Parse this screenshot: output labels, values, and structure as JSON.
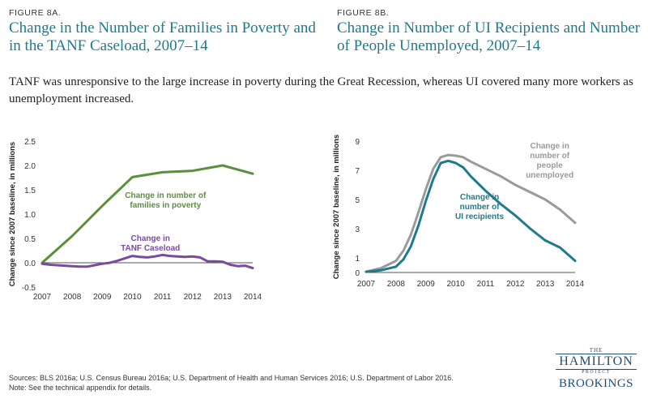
{
  "figures": {
    "a": {
      "label": "FIGURE 8A.",
      "title": "Change in the Number of Families in Poverty and in the TANF Caseload, 2007–14"
    },
    "b": {
      "label": "FIGURE 8B.",
      "title": "Change in Number of UI Recipients and Number of People Unemployed, 2007–14"
    }
  },
  "subtitle": "TANF was unresponsive to the large increase in poverty during the Great Recession, whereas UI covered many more workers as unemployment increased.",
  "footer": {
    "sources": "Sources: BLS 2016a; U.S. Census Bureau 2016a; U.S. Department of Health and Human Services 2016; U.S. Department of Labor 2016.",
    "note": "Note: See the technical appendix for details."
  },
  "logo": {
    "the": "THE",
    "hamilton": "HAMILTON",
    "project": "PROJECT",
    "brookings": "BROOKINGS"
  },
  "colors": {
    "title": "#1f7a8c",
    "poverty": "#5a8f3c",
    "tanf": "#7b4a9e",
    "ui": "#1e7b8c",
    "unemployed": "#9a9a9a"
  },
  "chart_data": [
    {
      "type": "line",
      "title": "",
      "xlabel": "",
      "ylabel": "Change since 2007 baseline, in millions",
      "xlim": [
        2007,
        2014
      ],
      "ylim": [
        -0.5,
        2.5
      ],
      "xticks": [
        "2007",
        "2008",
        "2009",
        "2010",
        "2011",
        "2012",
        "2013",
        "2014"
      ],
      "yticks": [
        "-0.5",
        "0.0",
        "0.5",
        "1.0",
        "1.5",
        "2.0",
        "2.5"
      ],
      "zero_line": true,
      "series": [
        {
          "name": "Change in number of families in poverty",
          "color": "#5a8f3c",
          "x": [
            2007,
            2008,
            2009,
            2010,
            2011,
            2012,
            2013,
            2014
          ],
          "y": [
            0.0,
            0.55,
            1.17,
            1.76,
            1.86,
            1.89,
            2.0,
            1.83
          ]
        },
        {
          "name": "Change in TANF Caseload",
          "color": "#7b4a9e",
          "x": [
            2007,
            2007.25,
            2007.5,
            2007.75,
            2008,
            2008.25,
            2008.5,
            2008.75,
            2009,
            2009.25,
            2009.5,
            2009.75,
            2010,
            2010.25,
            2010.5,
            2010.75,
            2011,
            2011.25,
            2011.5,
            2011.75,
            2012,
            2012.25,
            2012.5,
            2012.75,
            2013,
            2013.25,
            2013.5,
            2013.75,
            2014
          ],
          "y": [
            -0.02,
            -0.04,
            -0.05,
            -0.06,
            -0.07,
            -0.08,
            -0.08,
            -0.05,
            -0.02,
            0.0,
            0.04,
            0.09,
            0.14,
            0.12,
            0.11,
            0.13,
            0.16,
            0.14,
            0.13,
            0.12,
            0.13,
            0.11,
            0.03,
            0.03,
            0.02,
            -0.04,
            -0.07,
            -0.06,
            -0.11
          ]
        }
      ],
      "annotations": [
        {
          "text": [
            "Change in number of",
            "families in poverty"
          ],
          "x": 2011.1,
          "y": 1.33,
          "color": "#5a8f3c"
        },
        {
          "text": [
            "Change in",
            "TANF Caseload"
          ],
          "x": 2010.6,
          "y": 0.45,
          "color": "#7b4a9e"
        }
      ]
    },
    {
      "type": "line",
      "title": "",
      "xlabel": "",
      "ylabel": "Change since 2007 baseline, in millions",
      "xlim": [
        2007,
        2014
      ],
      "ylim": [
        0,
        9
      ],
      "xticks": [
        "2007",
        "2008",
        "2009",
        "2010",
        "2011",
        "2012",
        "2013",
        "2014"
      ],
      "yticks": [
        "0",
        "1",
        "3",
        "5",
        "7",
        "9"
      ],
      "zero_line": true,
      "series": [
        {
          "name": "Change in number of people unemployed",
          "color": "#9a9a9a",
          "x": [
            2007,
            2007.5,
            2008,
            2008.25,
            2008.5,
            2008.75,
            2009,
            2009.25,
            2009.5,
            2009.75,
            2010,
            2010.25,
            2010.5,
            2010.75,
            2011,
            2011.5,
            2012,
            2012.5,
            2013,
            2013.5,
            2014
          ],
          "y": [
            0.05,
            0.3,
            0.8,
            1.5,
            2.6,
            4.1,
            5.7,
            7.1,
            7.9,
            8.05,
            8.0,
            7.9,
            7.6,
            7.35,
            7.1,
            6.6,
            6.0,
            5.5,
            5.0,
            4.3,
            3.4
          ]
        },
        {
          "name": "Change in number of UI recipients",
          "color": "#1e7b8c",
          "x": [
            2007,
            2007.5,
            2008,
            2008.25,
            2008.5,
            2008.75,
            2009,
            2009.25,
            2009.5,
            2009.75,
            2010,
            2010.25,
            2010.5,
            2010.75,
            2011,
            2011.5,
            2012,
            2012.5,
            2013,
            2013.5,
            2014
          ],
          "y": [
            0.05,
            0.15,
            0.4,
            0.9,
            1.8,
            3.2,
            4.9,
            6.4,
            7.5,
            7.65,
            7.5,
            7.2,
            6.6,
            6.1,
            5.6,
            4.7,
            3.9,
            3.0,
            2.2,
            1.7,
            0.8
          ]
        }
      ],
      "annotations": [
        {
          "text": [
            "Change in",
            "number of",
            "UI recipients"
          ],
          "x": 2010.8,
          "y": 5.0,
          "color": "#1e7b8c"
        },
        {
          "text": [
            "Change in",
            "number of",
            "people",
            "unemployed"
          ],
          "x": 2013.15,
          "y": 8.5,
          "color": "#9a9a9a"
        }
      ]
    }
  ]
}
